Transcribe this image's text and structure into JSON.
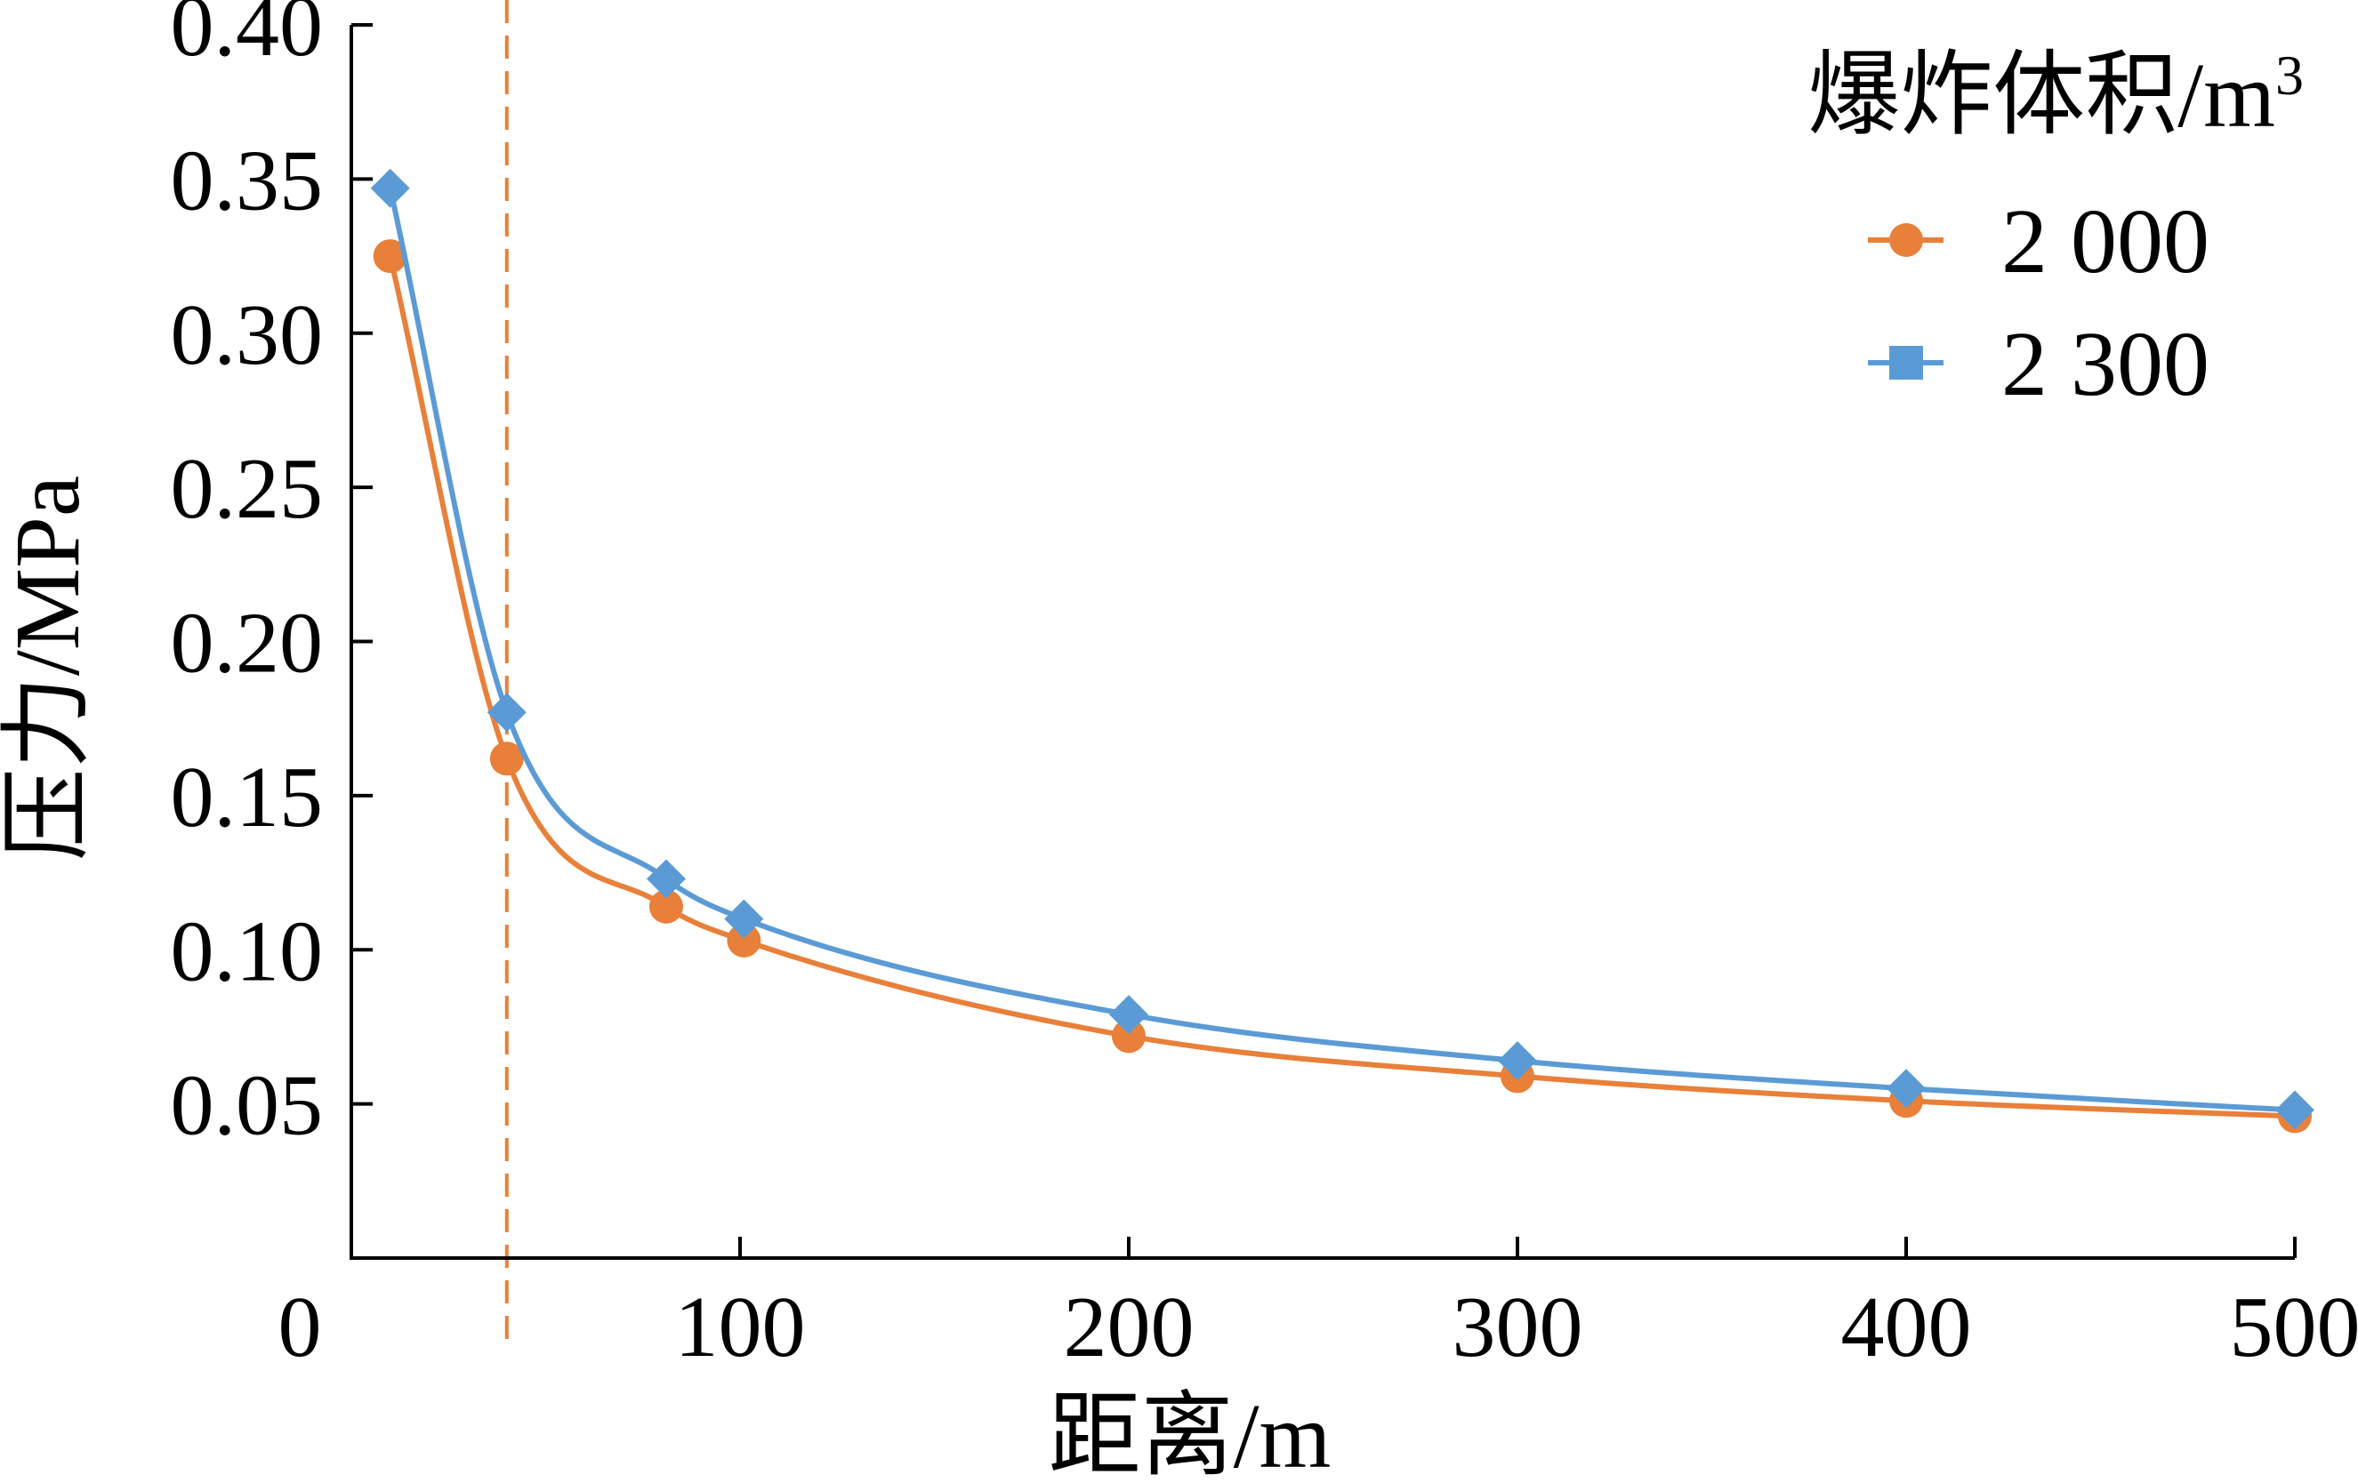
{
  "chart_data": {
    "type": "line",
    "title": "",
    "xlabel": "距离/m",
    "ylabel": "压力/MPa",
    "xlim": [
      0,
      500
    ],
    "ylim": [
      0,
      0.4
    ],
    "x_origin_label": "0",
    "x_ticks": [
      100,
      200,
      300,
      400,
      500
    ],
    "x_tick_labels": [
      "100",
      "200",
      "300",
      "400",
      "500"
    ],
    "y_ticks": [
      0.05,
      0.1,
      0.15,
      0.2,
      0.25,
      0.3,
      0.35,
      0.4
    ],
    "y_tick_labels": [
      "0.05",
      "0.10",
      "0.15",
      "0.20",
      "0.25",
      "0.30",
      "0.35",
      "0.40"
    ],
    "grid": false,
    "reference_line": {
      "x": 40,
      "color": "#E8803A"
    },
    "legend": {
      "title": "爆炸体积/m",
      "title_superscript": "3",
      "placement": "top-right"
    },
    "series": [
      {
        "name": "2 000",
        "color": "#E8803A",
        "marker": "circle",
        "x": [
          10,
          40,
          81,
          101,
          200,
          300,
          400,
          500
        ],
        "y": [
          0.325,
          0.162,
          0.114,
          0.103,
          0.072,
          0.059,
          0.051,
          0.046
        ]
      },
      {
        "name": "2 300",
        "color": "#5B9BD5",
        "marker": "diamond",
        "legend_marker": "square",
        "x": [
          10,
          40,
          81,
          101,
          200,
          300,
          400,
          500
        ],
        "y": [
          0.347,
          0.177,
          0.123,
          0.11,
          0.079,
          0.064,
          0.055,
          0.048
        ]
      }
    ]
  }
}
